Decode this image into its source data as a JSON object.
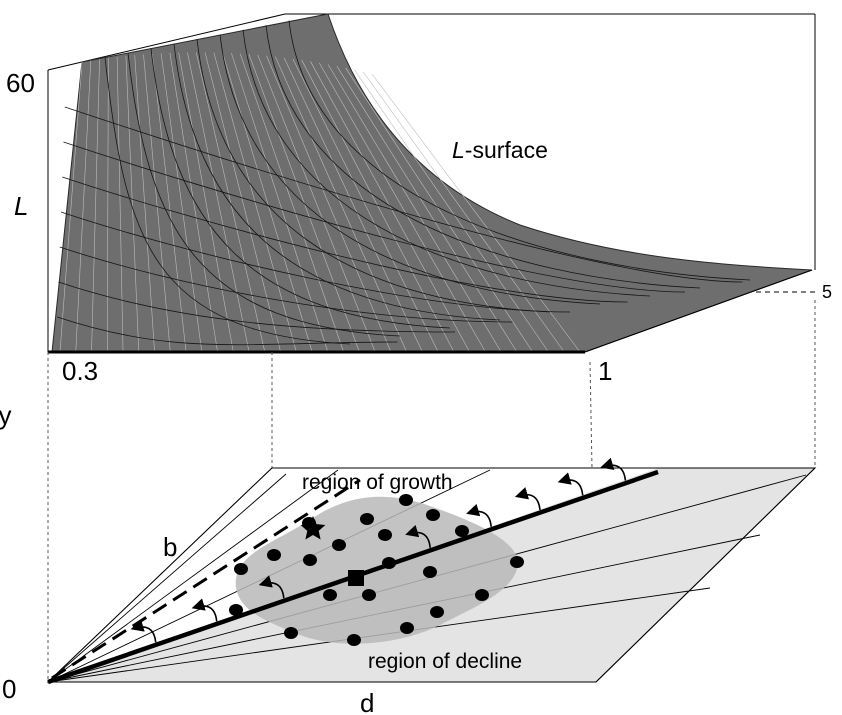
{
  "figure": {
    "top_panel": {
      "surface_label_var": "L",
      "surface_label_rest": "-surface",
      "z_axis_label": "L",
      "z_tick_top": "60",
      "z_tick_right": "5",
      "x_tick_left": "0.3",
      "x_tick_right": "1"
    },
    "bottom_panel": {
      "origin_label": "0",
      "b_axis_label": "b",
      "d_axis_label": "d",
      "left_cropped_text": "gy",
      "region_growth": "region of growth",
      "region_decline": "region of decline"
    },
    "colors": {
      "surface_fill": "#6e6e6e",
      "plane_fill": "#e4e4e4",
      "growth_plane_fill": "#ffffff",
      "blob_fill": "#b8b8b8",
      "ink": "#000000"
    },
    "markers": {
      "star_icon": "star",
      "square_icon": "square",
      "dot_icon": "dot",
      "arrow_icon": "curved-arrow"
    }
  }
}
